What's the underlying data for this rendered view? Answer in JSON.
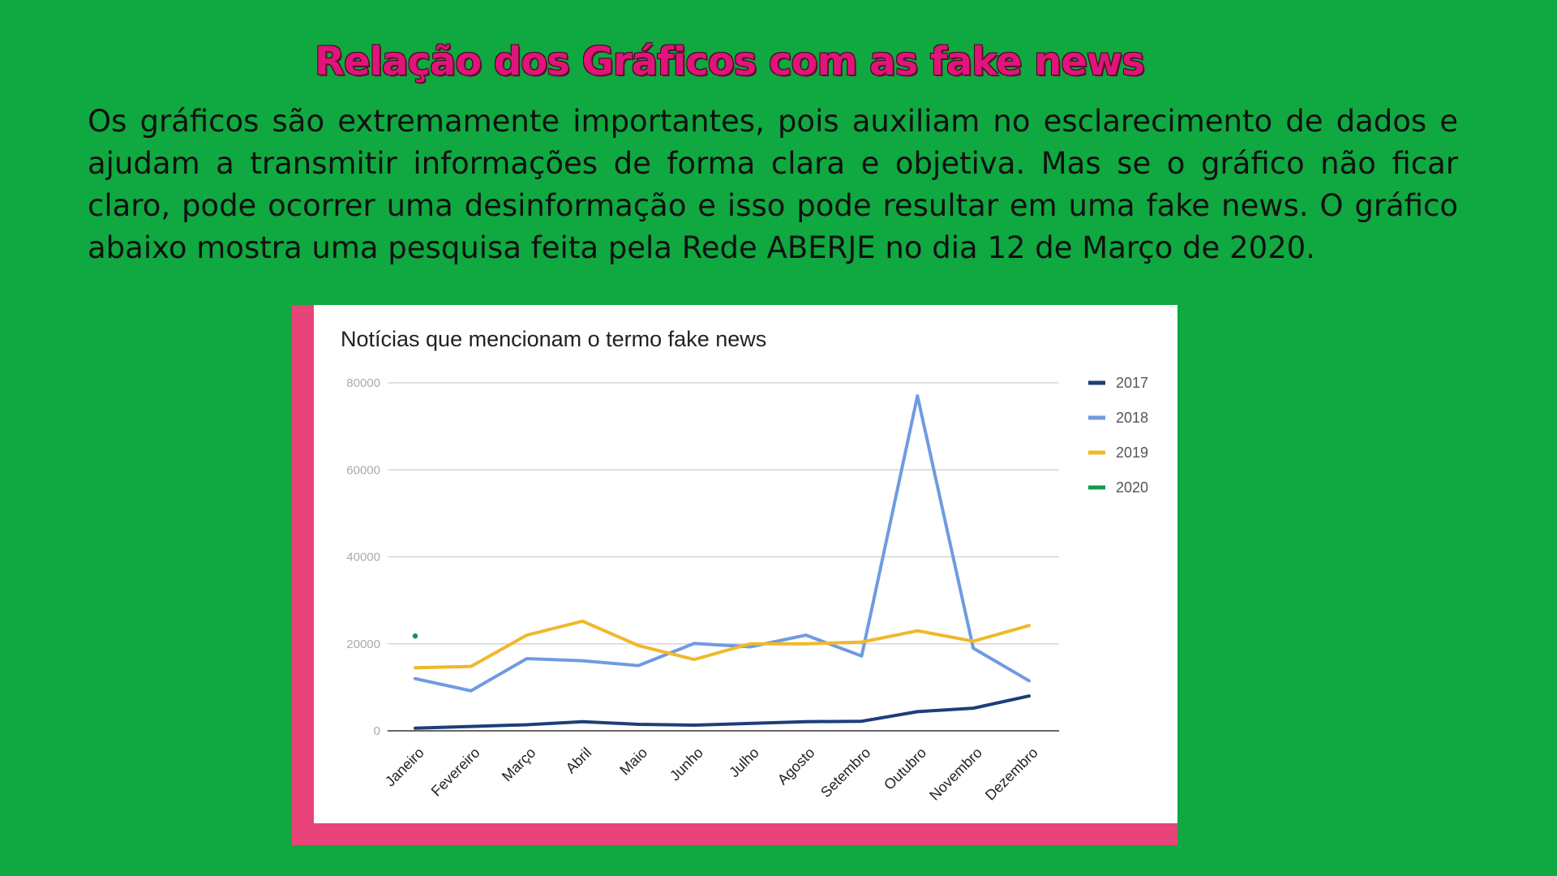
{
  "slide": {
    "title": "Relação dos Gráficos com as fake news",
    "body": "Os gráficos são extremamente importantes, pois auxiliam no esclarecimento de dados e ajudam a transmitir informações de forma clara e objetiva. Mas se o gráfico não ficar claro, pode ocorrer uma desinformação e isso pode resultar em uma fake news. O gráfico abaixo mostra uma pesquisa feita pela Rede ABERJE no dia 12 de Março de 2020."
  },
  "colors": {
    "background": "#10a840",
    "title": "#e0147a",
    "frame": "#e8447a",
    "s2017": "#1c3f78",
    "s2018": "#6f9be0",
    "s2019": "#f0b82a",
    "s2020": "#119a50"
  },
  "chart_data": {
    "type": "line",
    "title": "Notícias que mencionam o termo fake news",
    "xlabel": "",
    "ylabel": "",
    "categories": [
      "Janeiro",
      "Fevereiro",
      "Março",
      "Abril",
      "Maio",
      "Junho",
      "Julho",
      "Agosto",
      "Setembro",
      "Outubro",
      "Novembro",
      "Dezembro"
    ],
    "ylim": [
      0,
      80000
    ],
    "yticks": [
      "0",
      "20000",
      "40000",
      "60000",
      "80000"
    ],
    "grid": true,
    "legend_position": "right",
    "series": [
      {
        "name": "2017",
        "color": "#1c3f78",
        "values": [
          600,
          1000,
          1400,
          2100,
          1500,
          1300,
          1700,
          2100,
          2200,
          4400,
          5200,
          8000
        ]
      },
      {
        "name": "2018",
        "color": "#6f9be0",
        "values": [
          12000,
          9200,
          16600,
          16100,
          15000,
          20100,
          19300,
          22000,
          17200,
          77000,
          19000,
          11500
        ]
      },
      {
        "name": "2019",
        "color": "#f0b82a",
        "values": [
          14500,
          14800,
          22000,
          25200,
          19600,
          16400,
          20000,
          20000,
          20400,
          23000,
          20600,
          24200
        ]
      },
      {
        "name": "2020",
        "color": "#119a50",
        "values": [
          21800,
          null,
          null,
          null,
          null,
          null,
          null,
          null,
          null,
          null,
          null,
          null
        ]
      }
    ]
  }
}
